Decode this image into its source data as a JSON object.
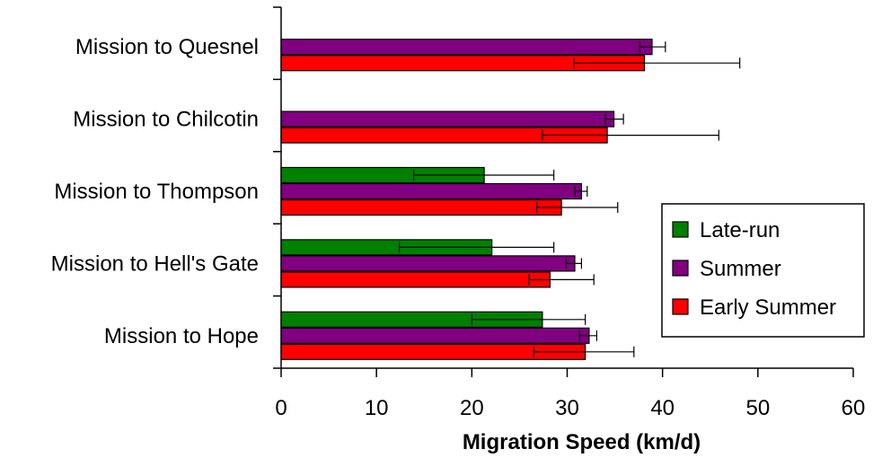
{
  "chart_data": {
    "type": "bar",
    "orientation": "horizontal",
    "title": "",
    "xlabel": "Migration Speed (km/d)",
    "ylabel": "",
    "xlim": [
      0,
      60
    ],
    "xticks": [
      0,
      10,
      20,
      30,
      40,
      50,
      60
    ],
    "grid": false,
    "legend_position": "right",
    "categories": [
      "Mission to Quesnel",
      "Mission to Chilcotin",
      "Mission to Thompson",
      "Mission to Hell's Gate",
      "Mission to Hope"
    ],
    "series": [
      {
        "name": "Late-run",
        "color": "#008000",
        "values": [
          null,
          null,
          21.3,
          22.1,
          27.4
        ],
        "err_low": [
          null,
          null,
          13.9,
          12.4,
          20.0
        ],
        "err_high": [
          null,
          null,
          28.6,
          28.6,
          31.9
        ]
      },
      {
        "name": "Summer",
        "color": "#800080",
        "values": [
          38.9,
          34.9,
          31.5,
          30.8,
          32.3
        ],
        "err_low": [
          37.6,
          34.0,
          30.8,
          29.9,
          31.3
        ],
        "err_high": [
          40.3,
          35.9,
          32.1,
          31.5,
          33.1
        ]
      },
      {
        "name": "Early Summer",
        "color": "#ff0000",
        "values": [
          38.1,
          34.2,
          29.4,
          28.2,
          31.9
        ],
        "err_low": [
          30.7,
          27.4,
          26.8,
          26.0,
          26.5
        ],
        "err_high": [
          48.1,
          45.9,
          35.3,
          32.8,
          37.0
        ]
      }
    ]
  }
}
